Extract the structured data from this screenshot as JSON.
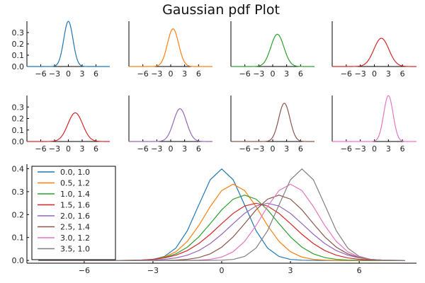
{
  "title": "Gaussian pdf Plot",
  "colors": [
    "#1f77b4",
    "#ff7f0e",
    "#2ca02c",
    "#d62728",
    "#9467bd",
    "#8c564b",
    "#e377c2",
    "#7f7f7f"
  ],
  "chart_data": [
    {
      "type": "line",
      "panel": "top-row-1",
      "series": [
        {
          "mu": 0.0,
          "sigma": 1.0,
          "color": "#1f77b4"
        }
      ],
      "xlim": [
        -9,
        9
      ],
      "ylim": [
        0,
        0.4
      ],
      "xticks": [
        -6,
        -3,
        0,
        3,
        6
      ],
      "yticks": [
        0.0,
        0.1,
        0.2,
        0.3
      ],
      "xtick_labels": [
        "−6",
        "−3",
        "0",
        "3",
        "6"
      ],
      "ytick_labels": [
        "0.0",
        "0.1",
        "0.2",
        "0.3"
      ]
    },
    {
      "type": "line",
      "panel": "top-row-2",
      "series": [
        {
          "mu": 0.5,
          "sigma": 1.2,
          "color": "#ff7f0e"
        }
      ],
      "xlim": [
        -9,
        9
      ],
      "ylim": [
        0,
        0.4
      ],
      "xticks": [
        -6,
        -3,
        0,
        3,
        6
      ],
      "xtick_labels": [
        "−6",
        "−3",
        "0",
        "3",
        "6"
      ]
    },
    {
      "type": "line",
      "panel": "top-row-3",
      "series": [
        {
          "mu": 1.0,
          "sigma": 1.4,
          "color": "#2ca02c"
        }
      ],
      "xlim": [
        -9,
        9
      ],
      "ylim": [
        0,
        0.4
      ],
      "xticks": [
        -6,
        -3,
        0,
        3,
        6
      ],
      "xtick_labels": [
        "−6",
        "−3",
        "0",
        "3",
        "6"
      ]
    },
    {
      "type": "line",
      "panel": "top-row-4",
      "series": [
        {
          "mu": 1.5,
          "sigma": 1.6,
          "color": "#d62728"
        }
      ],
      "xlim": [
        -9,
        9
      ],
      "ylim": [
        0,
        0.4
      ],
      "xticks": [
        -6,
        -3,
        0,
        3,
        6
      ],
      "xtick_labels": [
        "−6",
        "−3",
        "0",
        "3",
        "6"
      ]
    },
    {
      "type": "line",
      "panel": "middle-row-1",
      "series": [
        {
          "mu": 1.5,
          "sigma": 1.6,
          "color": "#d62728"
        }
      ],
      "xlim": [
        -9,
        9
      ],
      "ylim": [
        0,
        0.4
      ],
      "xticks": [
        -6,
        -3,
        0,
        3,
        6
      ],
      "yticks": [
        0.0,
        0.1,
        0.2,
        0.3
      ],
      "xtick_labels": [
        "−6",
        "−3",
        "0",
        "3",
        "6"
      ],
      "ytick_labels": [
        "0.0",
        "0.1",
        "0.2",
        "0.3"
      ]
    },
    {
      "type": "line",
      "panel": "middle-row-2",
      "series": [
        {
          "mu": 2.0,
          "sigma": 1.4,
          "color": "#9467bd"
        }
      ],
      "xlim": [
        -9,
        9
      ],
      "ylim": [
        0,
        0.4
      ],
      "xticks": [
        -6,
        -3,
        0,
        3,
        6
      ],
      "xtick_labels": [
        "−6",
        "−3",
        "0",
        "3",
        "6"
      ]
    },
    {
      "type": "line",
      "panel": "middle-row-3",
      "series": [
        {
          "mu": 2.5,
          "sigma": 1.2,
          "color": "#8c564b"
        }
      ],
      "xlim": [
        -9,
        9
      ],
      "ylim": [
        0,
        0.4
      ],
      "xticks": [
        -6,
        -3,
        0,
        3,
        6
      ],
      "xtick_labels": [
        "−6",
        "−3",
        "0",
        "3",
        "6"
      ]
    },
    {
      "type": "line",
      "panel": "middle-row-4",
      "series": [
        {
          "mu": 3.0,
          "sigma": 1.0,
          "color": "#e377c2"
        }
      ],
      "xlim": [
        -9,
        9
      ],
      "ylim": [
        0,
        0.4
      ],
      "xticks": [
        -6,
        -3,
        0,
        3,
        6
      ],
      "xtick_labels": [
        "−6",
        "−3",
        "0",
        "3",
        "6"
      ]
    },
    {
      "type": "line",
      "panel": "bottom",
      "series": [
        {
          "name": "0.0, 1.0",
          "mu": 0.0,
          "sigma": 1.0,
          "color": "#1f77b4"
        },
        {
          "name": "0.5, 1.2",
          "mu": 0.5,
          "sigma": 1.2,
          "color": "#ff7f0e"
        },
        {
          "name": "1.0, 1.4",
          "mu": 1.0,
          "sigma": 1.4,
          "color": "#2ca02c"
        },
        {
          "name": "1.5, 1.6",
          "mu": 1.5,
          "sigma": 1.6,
          "color": "#d62728"
        },
        {
          "name": "2.0, 1.6",
          "mu": 2.0,
          "sigma": 1.6,
          "color": "#9467bd"
        },
        {
          "name": "2.5, 1.4",
          "mu": 2.5,
          "sigma": 1.4,
          "color": "#8c564b"
        },
        {
          "name": "3.0, 1.2",
          "mu": 3.0,
          "sigma": 1.2,
          "color": "#e377c2"
        },
        {
          "name": "3.5, 1.0",
          "mu": 3.5,
          "sigma": 1.0,
          "color": "#7f7f7f"
        }
      ],
      "x_sample": {
        "start": -8,
        "end": 8,
        "step": 0.5
      },
      "xlim": [
        -8.5,
        8.5
      ],
      "ylim": [
        -0.012,
        0.42
      ],
      "xticks": [
        -6,
        -3,
        0,
        3,
        6
      ],
      "yticks": [
        0.0,
        0.1,
        0.2,
        0.3,
        0.4
      ],
      "xtick_labels": [
        "−6",
        "−3",
        "0",
        "3",
        "6"
      ],
      "ytick_labels": [
        "0.0",
        "0.1",
        "0.2",
        "0.3",
        "0.4"
      ],
      "legend": "top-left",
      "grid": false
    }
  ]
}
